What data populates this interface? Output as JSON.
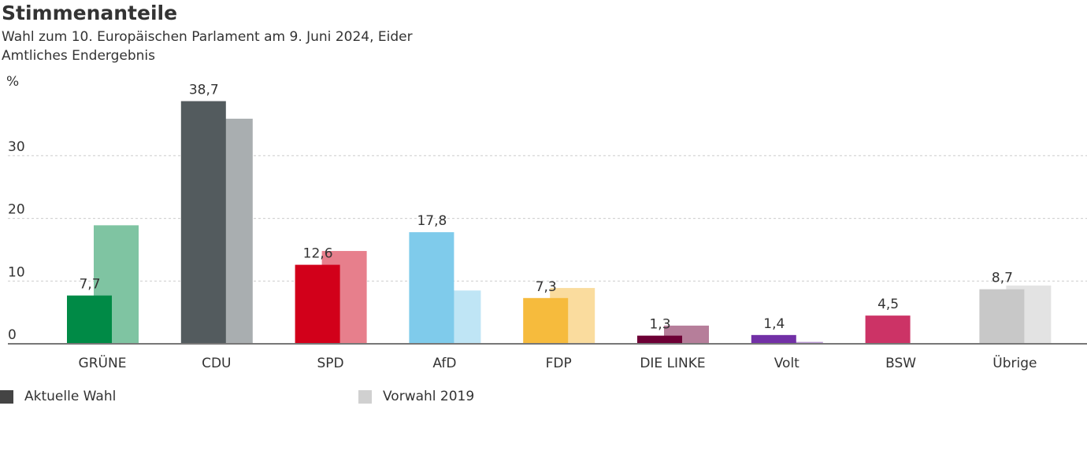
{
  "title": "Stimmenanteile",
  "subtitle": "Wahl zum 10. Europäischen Parlament am 9. Juni 2024, Eider",
  "subtitle2": "Amtliches Endergebnis",
  "chart_data": {
    "type": "bar",
    "ylabel": "%",
    "ylim": [
      0,
      40
    ],
    "yticks": [
      0,
      10,
      20,
      30
    ],
    "grid": true,
    "legend_position": "bottom",
    "categories": [
      "GRÜNE",
      "CDU",
      "SPD",
      "AfD",
      "FDP",
      "DIE LINKE",
      "Volt",
      "BSW",
      "Übrige"
    ],
    "series": [
      {
        "name": "Aktuelle Wahl",
        "values": [
          7.7,
          38.7,
          12.6,
          17.8,
          7.3,
          1.3,
          1.4,
          4.5,
          8.7
        ],
        "labels": [
          "7,7",
          "38,7",
          "12,6",
          "17,8",
          "7,3",
          "1,3",
          "1,4",
          "4,5",
          "8,7"
        ],
        "colors": [
          "#008a46",
          "#535b5e",
          "#d2001a",
          "#7fcbeb",
          "#f6bb3d",
          "#6d0035",
          "#7230a6",
          "#cc3366",
          "#c8c8c8"
        ]
      },
      {
        "name": "Vorwahl 2019",
        "values": [
          18.9,
          35.9,
          14.8,
          8.5,
          8.9,
          2.9,
          0.3,
          null,
          9.3
        ],
        "colors": [
          "#7fc4a2",
          "#a9aeb0",
          "#e77f8c",
          "#bfe5f5",
          "#fadc9e",
          "#b67e9a",
          "#b898d2",
          "#e599b2",
          "#e3e3e3"
        ]
      }
    ],
    "legend_colors": [
      "#444444",
      "#d0d0d0"
    ]
  }
}
